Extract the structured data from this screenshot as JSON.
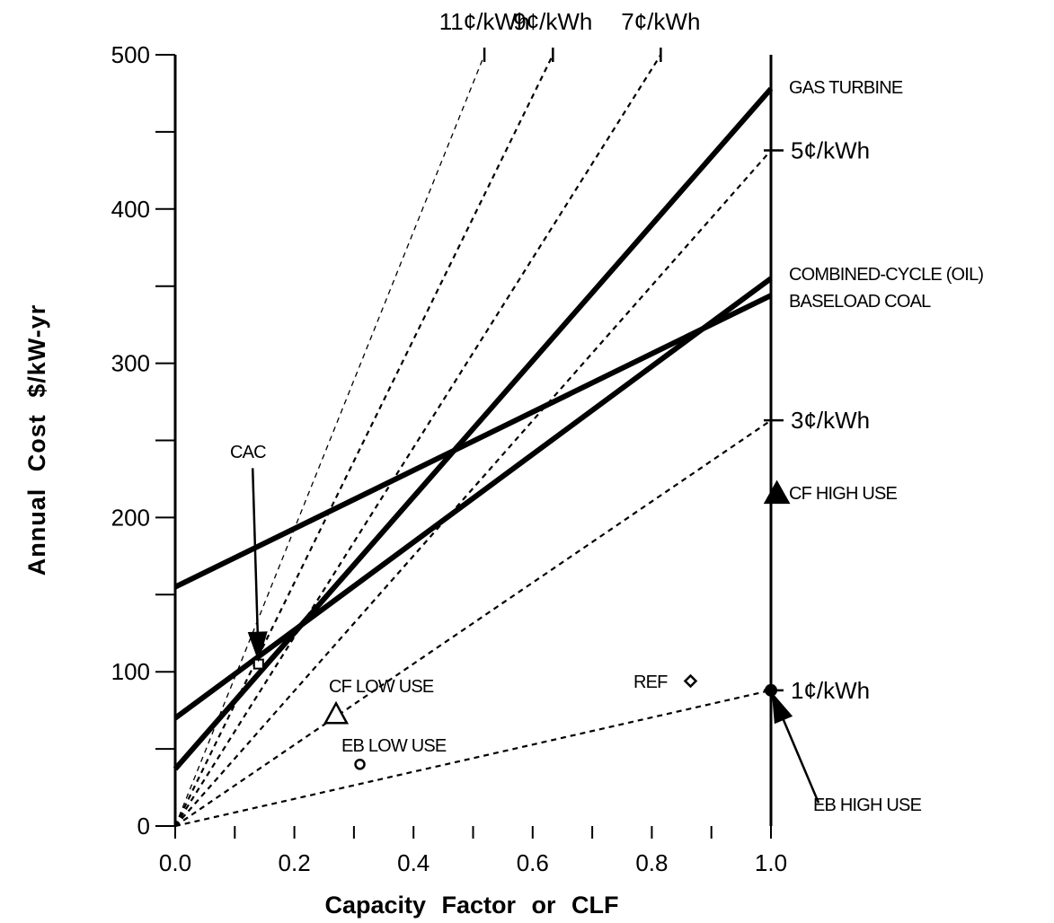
{
  "chart_data": {
    "type": "line",
    "title": "",
    "xlabel": "Capacity Factor or CLF",
    "ylabel": "Annual Cost $/kW-yr",
    "xlim": [
      0.0,
      1.0
    ],
    "ylim": [
      0,
      500
    ],
    "x_ticks": [
      "0.0",
      "0.2",
      "0.4",
      "0.6",
      "0.8",
      "1.0"
    ],
    "y_ticks": [
      "0",
      "100",
      "200",
      "300",
      "400",
      "500"
    ],
    "grid": false,
    "series": [
      {
        "name": "GAS TURBINE",
        "style": "solid-thick",
        "x": [
          0.0,
          1.0
        ],
        "y": [
          37,
          478
        ]
      },
      {
        "name": "COMBINED-CYCLE (OIL)",
        "style": "solid-thick",
        "x": [
          0.0,
          1.0
        ],
        "y": [
          70,
          355
        ]
      },
      {
        "name": "BASELOAD COAL",
        "style": "solid-thick",
        "x": [
          0.0,
          1.0
        ],
        "y": [
          155,
          344
        ]
      }
    ],
    "cost_lines": [
      {
        "label": "11¢/kWh",
        "position": "top",
        "x": [
          0.0,
          0.519
        ],
        "y": [
          0,
          500
        ]
      },
      {
        "label": "9¢/kWh",
        "position": "top",
        "x": [
          0.0,
          0.634
        ],
        "y": [
          0,
          500
        ]
      },
      {
        "label": "7¢/kWh",
        "position": "top",
        "x": [
          0.0,
          0.815
        ],
        "y": [
          0,
          500
        ]
      },
      {
        "label": "5¢/kWh",
        "position": "right",
        "x": [
          0.0,
          1.0
        ],
        "y": [
          0,
          438
        ]
      },
      {
        "label": "3¢/kWh",
        "position": "right",
        "x": [
          0.0,
          1.0
        ],
        "y": [
          0,
          263
        ]
      },
      {
        "label": "1¢/kWh",
        "position": "right",
        "x": [
          0.0,
          1.0
        ],
        "y": [
          0,
          88
        ]
      }
    ],
    "points": [
      {
        "label": "CAC",
        "x": 0.14,
        "y": 105,
        "marker": "open-square",
        "arrow_from": [
          0.13,
          232
        ]
      },
      {
        "label": "CF LOW USE",
        "x": 0.27,
        "y": 72,
        "marker": "open-triangle"
      },
      {
        "label": "EB LOW USE",
        "x": 0.31,
        "y": 40,
        "marker": "open-circle"
      },
      {
        "label": "REF",
        "x": 0.865,
        "y": 94,
        "marker": "open-diamond"
      },
      {
        "label": "CF HIGH USE",
        "x": 1.01,
        "y": 215,
        "marker": "filled-triangle"
      },
      {
        "label": "EB HIGH USE",
        "x": 1.0,
        "y": 88,
        "marker": "filled-circle",
        "arrow_from": [
          1.08,
          15
        ]
      }
    ]
  }
}
